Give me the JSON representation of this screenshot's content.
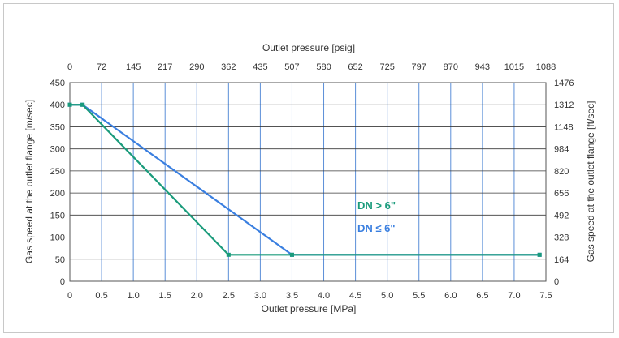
{
  "chart_data": {
    "type": "line",
    "x_bottom": {
      "label": "Outlet pressure [MPa]",
      "range": [
        0,
        7.5
      ],
      "ticks": [
        "0",
        "0.5",
        "1.0",
        "1.5",
        "2.0",
        "2.5",
        "3.0",
        "3.5",
        "4.0",
        "4.5",
        "5.0",
        "5.5",
        "6.0",
        "6.5",
        "7.0",
        "7.5"
      ]
    },
    "x_top": {
      "label": "Outlet pressure [psig]",
      "ticks": [
        "0",
        "72",
        "145",
        "217",
        "290",
        "362",
        "435",
        "507",
        "580",
        "652",
        "725",
        "797",
        "870",
        "943",
        "1015",
        "1088"
      ]
    },
    "y_left": {
      "label": "Gas speed at the outlet flange [m/sec]",
      "range": [
        0,
        450
      ],
      "ticks": [
        "0",
        "50",
        "100",
        "150",
        "200",
        "250",
        "300",
        "350",
        "400",
        "450"
      ]
    },
    "y_right": {
      "label": "Gas speed at the outlet flange [ft/sec]",
      "ticks": [
        "0",
        "164",
        "328",
        "492",
        "656",
        "820",
        "984",
        "1148",
        "1312",
        "1476"
      ]
    },
    "grid": true,
    "series": [
      {
        "name": "DN > 6\"",
        "color": "#1a9b7b",
        "x": [
          0,
          0.2,
          2.5,
          3.5,
          7.4
        ],
        "y": [
          400,
          400,
          60,
          60,
          60
        ]
      },
      {
        "name": "DN ≤ 6\"",
        "color": "#3a7fe0",
        "x": [
          0,
          0.2,
          3.5,
          7.4
        ],
        "y": [
          400,
          400,
          60,
          60
        ]
      }
    ],
    "legend_placement": "inside-right"
  }
}
